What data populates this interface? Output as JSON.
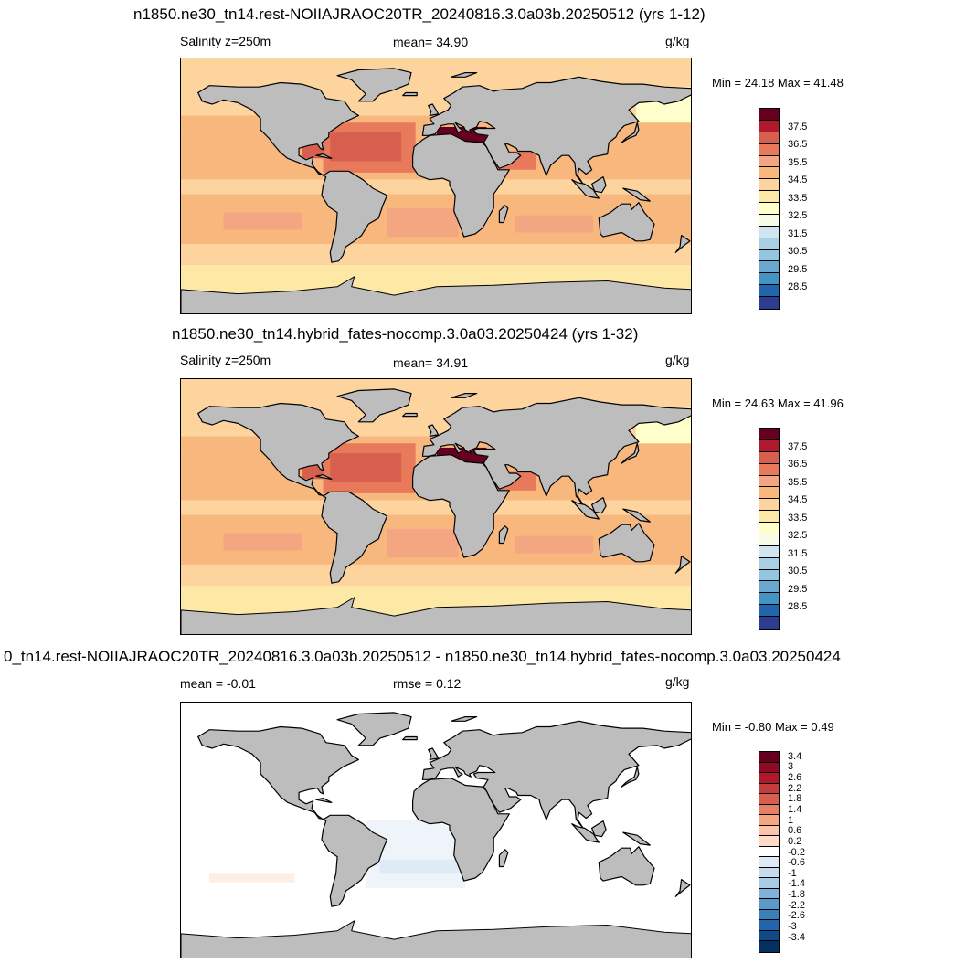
{
  "panels": [
    {
      "title": "n1850.ne30_tn14.rest-NOIIAJRAOC20TR_20240816.3.0a03b.20250512 (yrs 1-12)",
      "left_label": "Salinity z=250m",
      "center_label": "mean=  34.90",
      "units": "g/kg",
      "minmax": "Min =  24.18 Max =  41.48",
      "colorbar_labels": [
        "37.5",
        "36.5",
        "35.5",
        "34.5",
        "33.5",
        "32.5",
        "31.5",
        "30.5",
        "29.5",
        "28.5"
      ],
      "colorbar_colors": [
        "#67001f",
        "#b2182b",
        "#d6604d",
        "#e8795a",
        "#f4a582",
        "#f7b77d",
        "#fdd49e",
        "#fee8a6",
        "#ffffcc",
        "#f7fbe8",
        "#d1e5f0",
        "#a9cfe3",
        "#92c5de",
        "#6aa6cd",
        "#4393c3",
        "#2166ac",
        "#2b3d8f"
      ]
    },
    {
      "title": "n1850.ne30_tn14.hybrid_fates-nocomp.3.0a03.20250424 (yrs 1-32)",
      "left_label": "Salinity z=250m",
      "center_label": "mean=  34.91",
      "units": "g/kg",
      "minmax": "Min =  24.63 Max =  41.96",
      "colorbar_labels": [
        "37.5",
        "36.5",
        "35.5",
        "34.5",
        "33.5",
        "32.5",
        "31.5",
        "30.5",
        "29.5",
        "28.5"
      ],
      "colorbar_colors": [
        "#67001f",
        "#b2182b",
        "#d6604d",
        "#e8795a",
        "#f4a582",
        "#f7b77d",
        "#fdd49e",
        "#fee8a6",
        "#ffffcc",
        "#f7fbe8",
        "#d1e5f0",
        "#a9cfe3",
        "#92c5de",
        "#6aa6cd",
        "#4393c3",
        "#2166ac",
        "#2b3d8f"
      ]
    },
    {
      "title": "0_tn14.rest-NOIIAJRAOC20TR_20240816.3.0a03b.20250512 - n1850.ne30_tn14.hybrid_fates-nocomp.3.0a03.20250424",
      "left_label": "mean =  -0.01",
      "center_label": "rmse =   0.12",
      "units": "g/kg",
      "minmax": "Min =  -0.80 Max =   0.49",
      "colorbar_labels": [
        "3.4",
        "3",
        "2.6",
        "2.2",
        "1.8",
        "1.4",
        "1",
        "0.6",
        "0.2",
        "-0.2",
        "-0.6",
        "-1",
        "-1.4",
        "-1.8",
        "-2.2",
        "-2.6",
        "-3",
        "-3.4"
      ],
      "colorbar_colors": [
        "#67001f",
        "#8e0b25",
        "#b2182b",
        "#c43c3c",
        "#d6604d",
        "#e48066",
        "#f4a582",
        "#f9c4a9",
        "#fddbc7",
        "#ffffff",
        "#deebf7",
        "#c6dbef",
        "#a6cbe3",
        "#7fb2d6",
        "#5a99c8",
        "#3b7fb8",
        "#2166ac",
        "#124a85",
        "#053061"
      ]
    }
  ],
  "colors": {
    "land": "#bdbdbd",
    "coast": "#000000"
  }
}
